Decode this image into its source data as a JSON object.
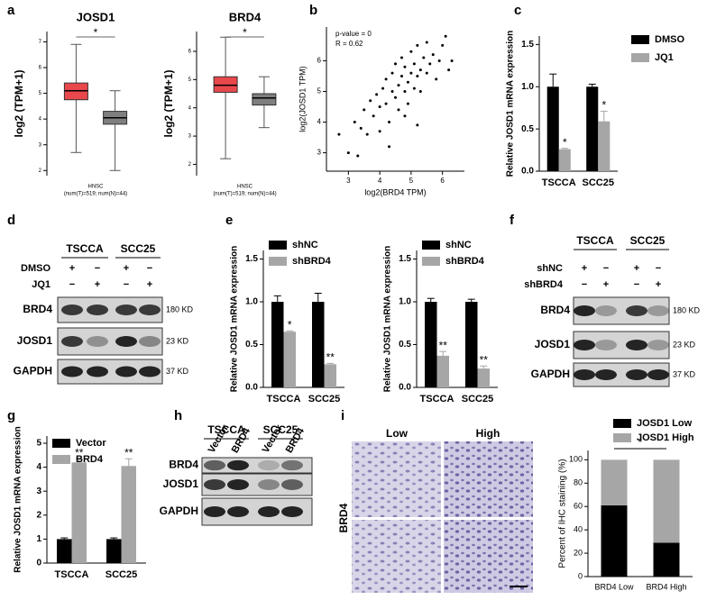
{
  "panel_labels": [
    "a",
    "b",
    "c",
    "d",
    "e",
    "f",
    "g",
    "h",
    "i"
  ],
  "chart_data": [
    {
      "type": "box",
      "title": "JOSD1",
      "ylabel": "log2 (TPM+1)",
      "xlabel": "HNSC",
      "note": "(num(T)=519; num(N)=44)",
      "annotation": "*",
      "boxes": [
        {
          "color": "#e8474c",
          "whislo": 2.7,
          "q1": 4.75,
          "median": 5.1,
          "q3": 5.4,
          "whishi": 6.9
        },
        {
          "color": "#7f7f7f",
          "whislo": 2.0,
          "q1": 3.8,
          "median": 4.05,
          "q3": 4.3,
          "whishi": 5.1
        }
      ],
      "ylim": [
        1.8,
        7.4
      ],
      "yticks": [
        2,
        3,
        4,
        5,
        6,
        7
      ]
    },
    {
      "type": "box",
      "title": "BRD4",
      "ylabel": "log2 (TPM+1)",
      "xlabel": "HNSC",
      "note": "(num(T)=519; num(N)=44)",
      "annotation": "*",
      "boxes": [
        {
          "color": "#e8474c",
          "whislo": 2.2,
          "q1": 4.55,
          "median": 4.8,
          "q3": 5.1,
          "whishi": 6.5
        },
        {
          "color": "#7f7f7f",
          "whislo": 3.3,
          "q1": 4.1,
          "median": 4.35,
          "q3": 4.5,
          "whishi": 5.1
        }
      ],
      "ylim": [
        1.6,
        6.7
      ],
      "yticks": [
        2,
        3,
        4,
        5,
        6
      ]
    },
    {
      "type": "scatter",
      "xlabel": "log2(BRD4 TPM)",
      "ylabel": "log2(JOSD1 TPM)",
      "annotations": [
        "p-value = 0",
        "R = 0.62"
      ],
      "x": [
        2.7,
        3.0,
        3.2,
        3.4,
        3.5,
        3.6,
        3.7,
        3.8,
        3.9,
        4.0,
        4.0,
        4.1,
        4.2,
        4.2,
        4.3,
        4.4,
        4.4,
        4.5,
        4.5,
        4.6,
        4.6,
        4.7,
        4.7,
        4.8,
        4.8,
        4.9,
        4.9,
        5.0,
        5.0,
        5.1,
        5.1,
        5.2,
        5.2,
        5.3,
        5.3,
        5.4,
        5.5,
        5.5,
        5.6,
        5.7,
        5.8,
        5.9,
        6.0,
        6.1,
        6.2,
        6.3,
        4.3,
        4.8,
        5.2,
        3.3
      ],
      "y": [
        3.6,
        3.0,
        4.0,
        3.8,
        4.4,
        3.6,
        4.7,
        4.2,
        4.9,
        4.5,
        3.7,
        5.1,
        4.6,
        5.4,
        4.0,
        5.0,
        5.6,
        4.8,
        5.9,
        5.2,
        4.4,
        5.5,
        6.1,
        5.0,
        5.8,
        5.3,
        4.6,
        5.6,
        6.3,
        5.1,
        5.9,
        5.5,
        6.5,
        5.7,
        5.0,
        6.1,
        5.6,
        6.6,
        5.9,
        6.2,
        5.4,
        6.0,
        6.5,
        6.8,
        5.7,
        6.0,
        3.2,
        4.2,
        3.9,
        2.9
      ],
      "xlim": [
        2.3,
        6.7
      ],
      "xticks": [
        3,
        4,
        5,
        6
      ],
      "ylim": [
        2.4,
        7.1
      ],
      "yticks": [
        3,
        4,
        5,
        6
      ]
    },
    {
      "type": "bar",
      "ylabel": "Relative JOSD1 mRNA expression",
      "categories": [
        "TSCCA",
        "SCC25"
      ],
      "series": [
        {
          "name": "DMSO",
          "color": "#000000",
          "values": [
            1.0,
            1.0
          ],
          "errors": [
            0.15,
            0.03
          ],
          "labels": [
            null,
            null
          ]
        },
        {
          "name": "JQ1",
          "color": "#a6a6a6",
          "values": [
            0.26,
            0.59
          ],
          "errors": [
            0.01,
            0.12
          ],
          "labels": [
            "*",
            "*"
          ]
        }
      ],
      "ylim": [
        0,
        1.6
      ],
      "yticks": [
        {
          "value": 0,
          "label": "0.0"
        },
        0.5,
        {
          "value": 1,
          "label": "1.0"
        },
        1.5
      ]
    },
    {
      "type": "bar",
      "ylabel": "Relative JOSD1 mRNA expression",
      "categories": [
        "TSCCA",
        "SCC25"
      ],
      "series": [
        {
          "name": "shNC",
          "color": "#000000",
          "values": [
            1.0,
            1.0
          ],
          "errors": [
            0.07,
            0.1
          ],
          "labels": [
            null,
            null
          ]
        },
        {
          "name": "shBRD4",
          "color": "#a6a6a6",
          "values": [
            0.65,
            0.27
          ],
          "errors": [
            0.01,
            0.01
          ],
          "labels": [
            "*",
            "**"
          ]
        }
      ],
      "ylim": [
        0,
        1.6
      ],
      "yticks": [
        {
          "value": 0,
          "label": "0.0"
        },
        0.5,
        {
          "value": 1,
          "label": "1.0"
        },
        1.5
      ]
    },
    {
      "type": "bar",
      "ylabel": "Relative JOSD1 mRNA expression",
      "categories": [
        "TSCCA",
        "SCC25"
      ],
      "series": [
        {
          "name": "shNC",
          "color": "#000000",
          "values": [
            1.0,
            1.0
          ],
          "errors": [
            0.04,
            0.03
          ],
          "labels": [
            null,
            null
          ]
        },
        {
          "name": "shBRD4",
          "color": "#a6a6a6",
          "values": [
            0.37,
            0.22
          ],
          "errors": [
            0.05,
            0.03
          ],
          "labels": [
            "**",
            "**"
          ]
        }
      ],
      "ylim": [
        0,
        1.6
      ],
      "yticks": [
        {
          "value": 0,
          "label": "0.0"
        },
        0.5,
        {
          "value": 1,
          "label": "1.0"
        },
        1.5
      ]
    },
    {
      "type": "bar",
      "ylabel": "Relative JOSD1 mRNA expression",
      "categories": [
        "TSCCA",
        "SCC25"
      ],
      "series": [
        {
          "name": "Vector",
          "color": "#000000",
          "values": [
            1.0,
            1.0
          ],
          "errors": [
            0.05,
            0.05
          ],
          "labels": [
            null,
            null
          ]
        },
        {
          "name": "BRD4",
          "color": "#a6a6a6",
          "values": [
            4.2,
            4.05
          ],
          "errors": [
            0.15,
            0.3
          ],
          "labels": [
            "**",
            "**"
          ]
        }
      ],
      "ylim": [
        0,
        5.3
      ],
      "yticks": [
        0,
        1,
        2,
        3,
        4,
        5
      ]
    },
    {
      "type": "stacked_bar",
      "ylabel": "Percent of IHC staining (%)",
      "categories": [
        "BRD4 Low",
        "BRD4 High"
      ],
      "annotation": "*",
      "series": [
        {
          "name": "JOSD1 Low",
          "color": "#000000",
          "values": [
            61,
            29
          ]
        },
        {
          "name": "JOSD1 High",
          "color": "#a6a6a6",
          "values": [
            39,
            71
          ]
        }
      ],
      "ylim": [
        0,
        108
      ],
      "yticks": [
        0,
        20,
        40,
        60,
        80,
        100
      ]
    }
  ],
  "blot_d": {
    "cell_lines": [
      "TSCCA",
      "SCC25"
    ],
    "treatments": [
      {
        "name": "DMSO",
        "signs": [
          "+",
          "−",
          "+",
          "−"
        ]
      },
      {
        "name": "JQ1",
        "signs": [
          "−",
          "+",
          "−",
          "+"
        ]
      }
    ],
    "rows": [
      {
        "name": "BRD4",
        "size": "180 KD"
      },
      {
        "name": "JOSD1",
        "size": "23 KD"
      },
      {
        "name": "GAPDH",
        "size": "37 KD"
      }
    ]
  },
  "blot_f": {
    "cell_lines": [
      "TSCCA",
      "SCC25"
    ],
    "treatments": [
      {
        "name": "shNC",
        "signs": [
          "+",
          "−",
          "+",
          "−"
        ]
      },
      {
        "name": "shBRD4",
        "signs": [
          "−",
          "+",
          "−",
          "+"
        ]
      }
    ],
    "rows": [
      {
        "name": "BRD4",
        "size": "180 KD"
      },
      {
        "name": "JOSD1",
        "size": "23 KD"
      },
      {
        "name": "GAPDH",
        "size": "37 KD"
      }
    ]
  },
  "blot_h": {
    "cell_lines": [
      "TSCCA",
      "SCC25"
    ],
    "lanes": [
      "Vector",
      "BRD4",
      "Vector",
      "BRD4"
    ],
    "rows": [
      {
        "name": "BRD4"
      },
      {
        "name": "JOSD1"
      },
      {
        "name": "GAPDH"
      }
    ]
  },
  "ihc_i": {
    "columns": [
      "Low",
      "High"
    ],
    "row_label": "BRD4"
  }
}
